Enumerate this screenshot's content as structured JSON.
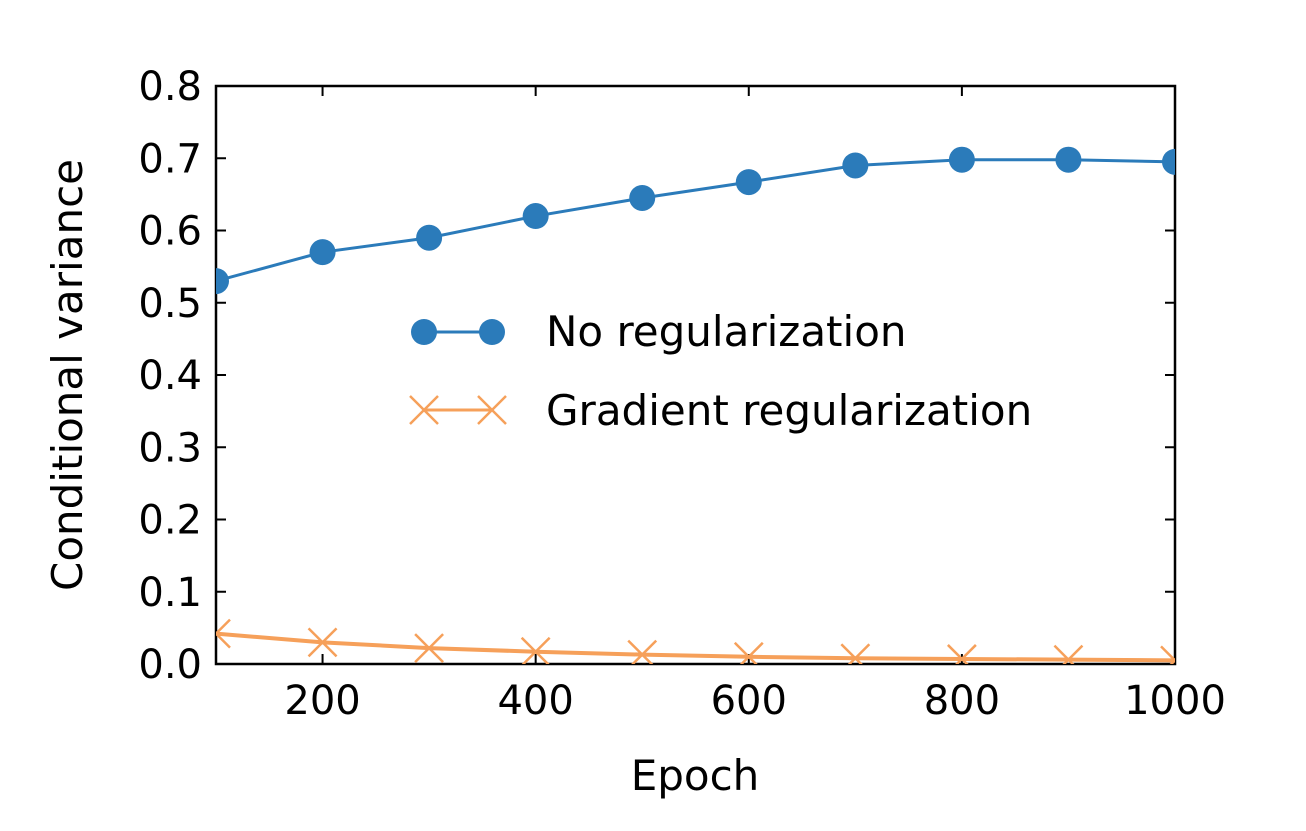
{
  "chart_data": {
    "type": "line",
    "title": "",
    "xlabel": "Epoch",
    "ylabel": "Conditional variance",
    "xlim": [
      100,
      1000
    ],
    "ylim": [
      0.0,
      0.8
    ],
    "x": [
      100,
      200,
      300,
      400,
      500,
      600,
      700,
      800,
      900,
      1000
    ],
    "xticks": [
      200,
      400,
      600,
      800,
      1000
    ],
    "xtick_labels": [
      "200",
      "400",
      "600",
      "800",
      "1000"
    ],
    "yticks": [
      0.0,
      0.1,
      0.2,
      0.3,
      0.4,
      0.5,
      0.6,
      0.7,
      0.8
    ],
    "ytick_labels": [
      "0.0",
      "0.1",
      "0.2",
      "0.3",
      "0.4",
      "0.5",
      "0.6",
      "0.7",
      "0.8"
    ],
    "grid": false,
    "legend_position": "center-right",
    "series": [
      {
        "name": "No regularization",
        "marker": "circle",
        "color": "#2b7bba",
        "values": [
          0.53,
          0.57,
          0.59,
          0.62,
          0.645,
          0.667,
          0.69,
          0.698,
          0.698,
          0.695
        ]
      },
      {
        "name": "Gradient regularization",
        "marker": "x",
        "color": "#f6a05a",
        "values": [
          0.042,
          0.03,
          0.022,
          0.017,
          0.013,
          0.01,
          0.008,
          0.007,
          0.006,
          0.005
        ]
      }
    ]
  }
}
